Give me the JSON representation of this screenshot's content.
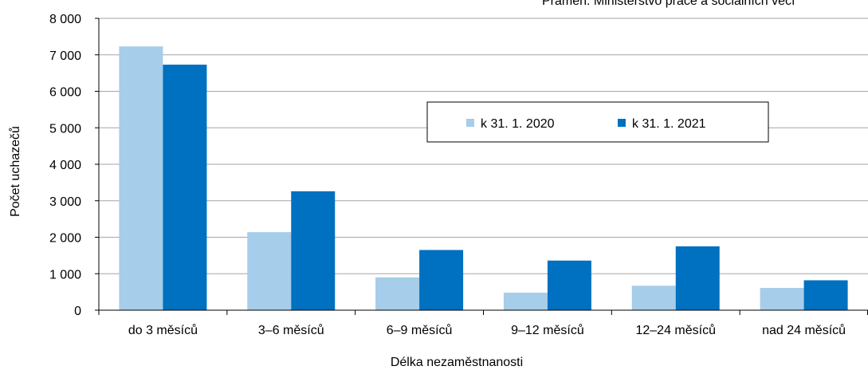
{
  "colors": {
    "series_2020": "#a6cde9",
    "series_2021": "#0070c0",
    "gridline": "#a6a6a6",
    "axis": "#000000"
  },
  "source_note": "Pramen: Ministerstvo práce a sociálních věcí",
  "chart_data": {
    "type": "bar",
    "categories": [
      "do 3 měsíců",
      "3–6 měsíců",
      "6–9 měsíců",
      "9–12 měsíců",
      "12–24 měsíců",
      "nad 24 měsíců"
    ],
    "series": [
      {
        "name": "k 31. 1. 2020",
        "values": [
          7230,
          2140,
          900,
          480,
          670,
          610
        ]
      },
      {
        "name": "k 31. 1. 2021",
        "values": [
          6730,
          3260,
          1650,
          1360,
          1750,
          820
        ]
      }
    ],
    "xlabel": "Délka nezaměstnanosti",
    "ylabel": "Počet uchazečů",
    "ylim": [
      0,
      8000
    ],
    "yticks": [
      0,
      1000,
      2000,
      3000,
      4000,
      5000,
      6000,
      7000,
      8000
    ],
    "ytick_labels": [
      "0",
      "1 000",
      "2 000",
      "3 000",
      "4 000",
      "5 000",
      "6 000",
      "7 000",
      "8 000"
    ],
    "grid": true,
    "legend_position": "top-right"
  }
}
